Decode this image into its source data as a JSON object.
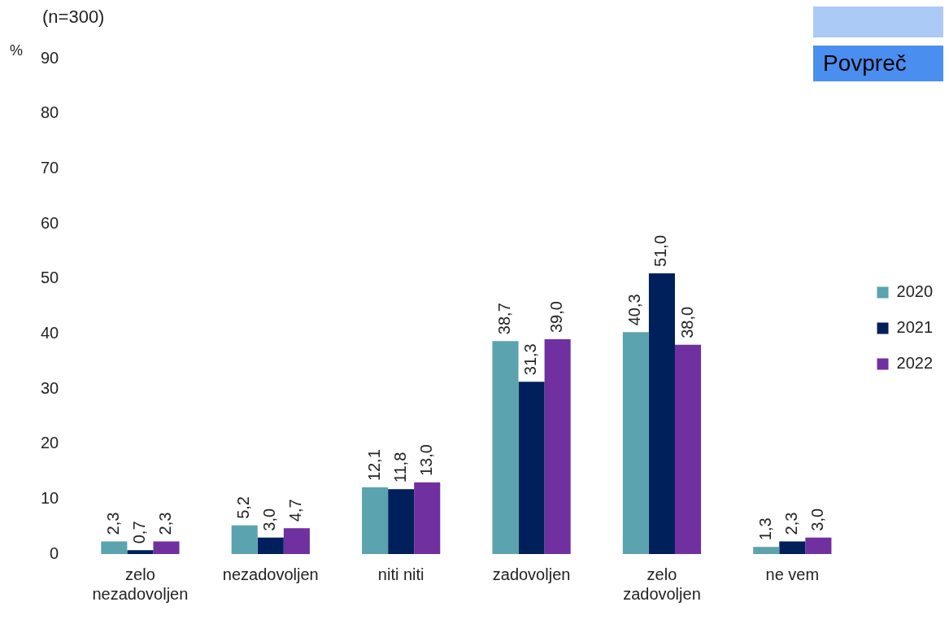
{
  "chart_data": {
    "type": "bar",
    "subtitle": "(n=300)",
    "ylabel": "%",
    "categories": [
      "zelo nezadovoljen",
      "nezadovoljen",
      "niti niti",
      "zadovoljen",
      "zelo zadovoljen",
      "ne vem"
    ],
    "series": [
      {
        "name": "2020",
        "color": "#5ba3ae",
        "values": [
          2.3,
          5.2,
          12.1,
          38.7,
          40.3,
          1.3
        ],
        "value_labels": [
          "2,3",
          "5,2",
          "12,1",
          "38,7",
          "40,3",
          "1,3"
        ]
      },
      {
        "name": "2021",
        "color": "#00205b",
        "values": [
          0.7,
          3.0,
          11.8,
          31.3,
          51.0,
          2.3
        ],
        "value_labels": [
          "0,7",
          "3,0",
          "11,8",
          "31,3",
          "51,0",
          "2,3"
        ]
      },
      {
        "name": "2022",
        "color": "#7030a0",
        "values": [
          2.3,
          4.7,
          13.0,
          39.0,
          38.0,
          3.0
        ],
        "value_labels": [
          "2,3",
          "4,7",
          "13,0",
          "39,0",
          "38,0",
          "3,0"
        ]
      }
    ],
    "ylim": [
      0,
      90
    ],
    "yticks": [
      0,
      10,
      20,
      30,
      40,
      50,
      60,
      70,
      80,
      90
    ],
    "grid": false,
    "legend": "right",
    "annotations": [
      "Povpreč"
    ]
  }
}
